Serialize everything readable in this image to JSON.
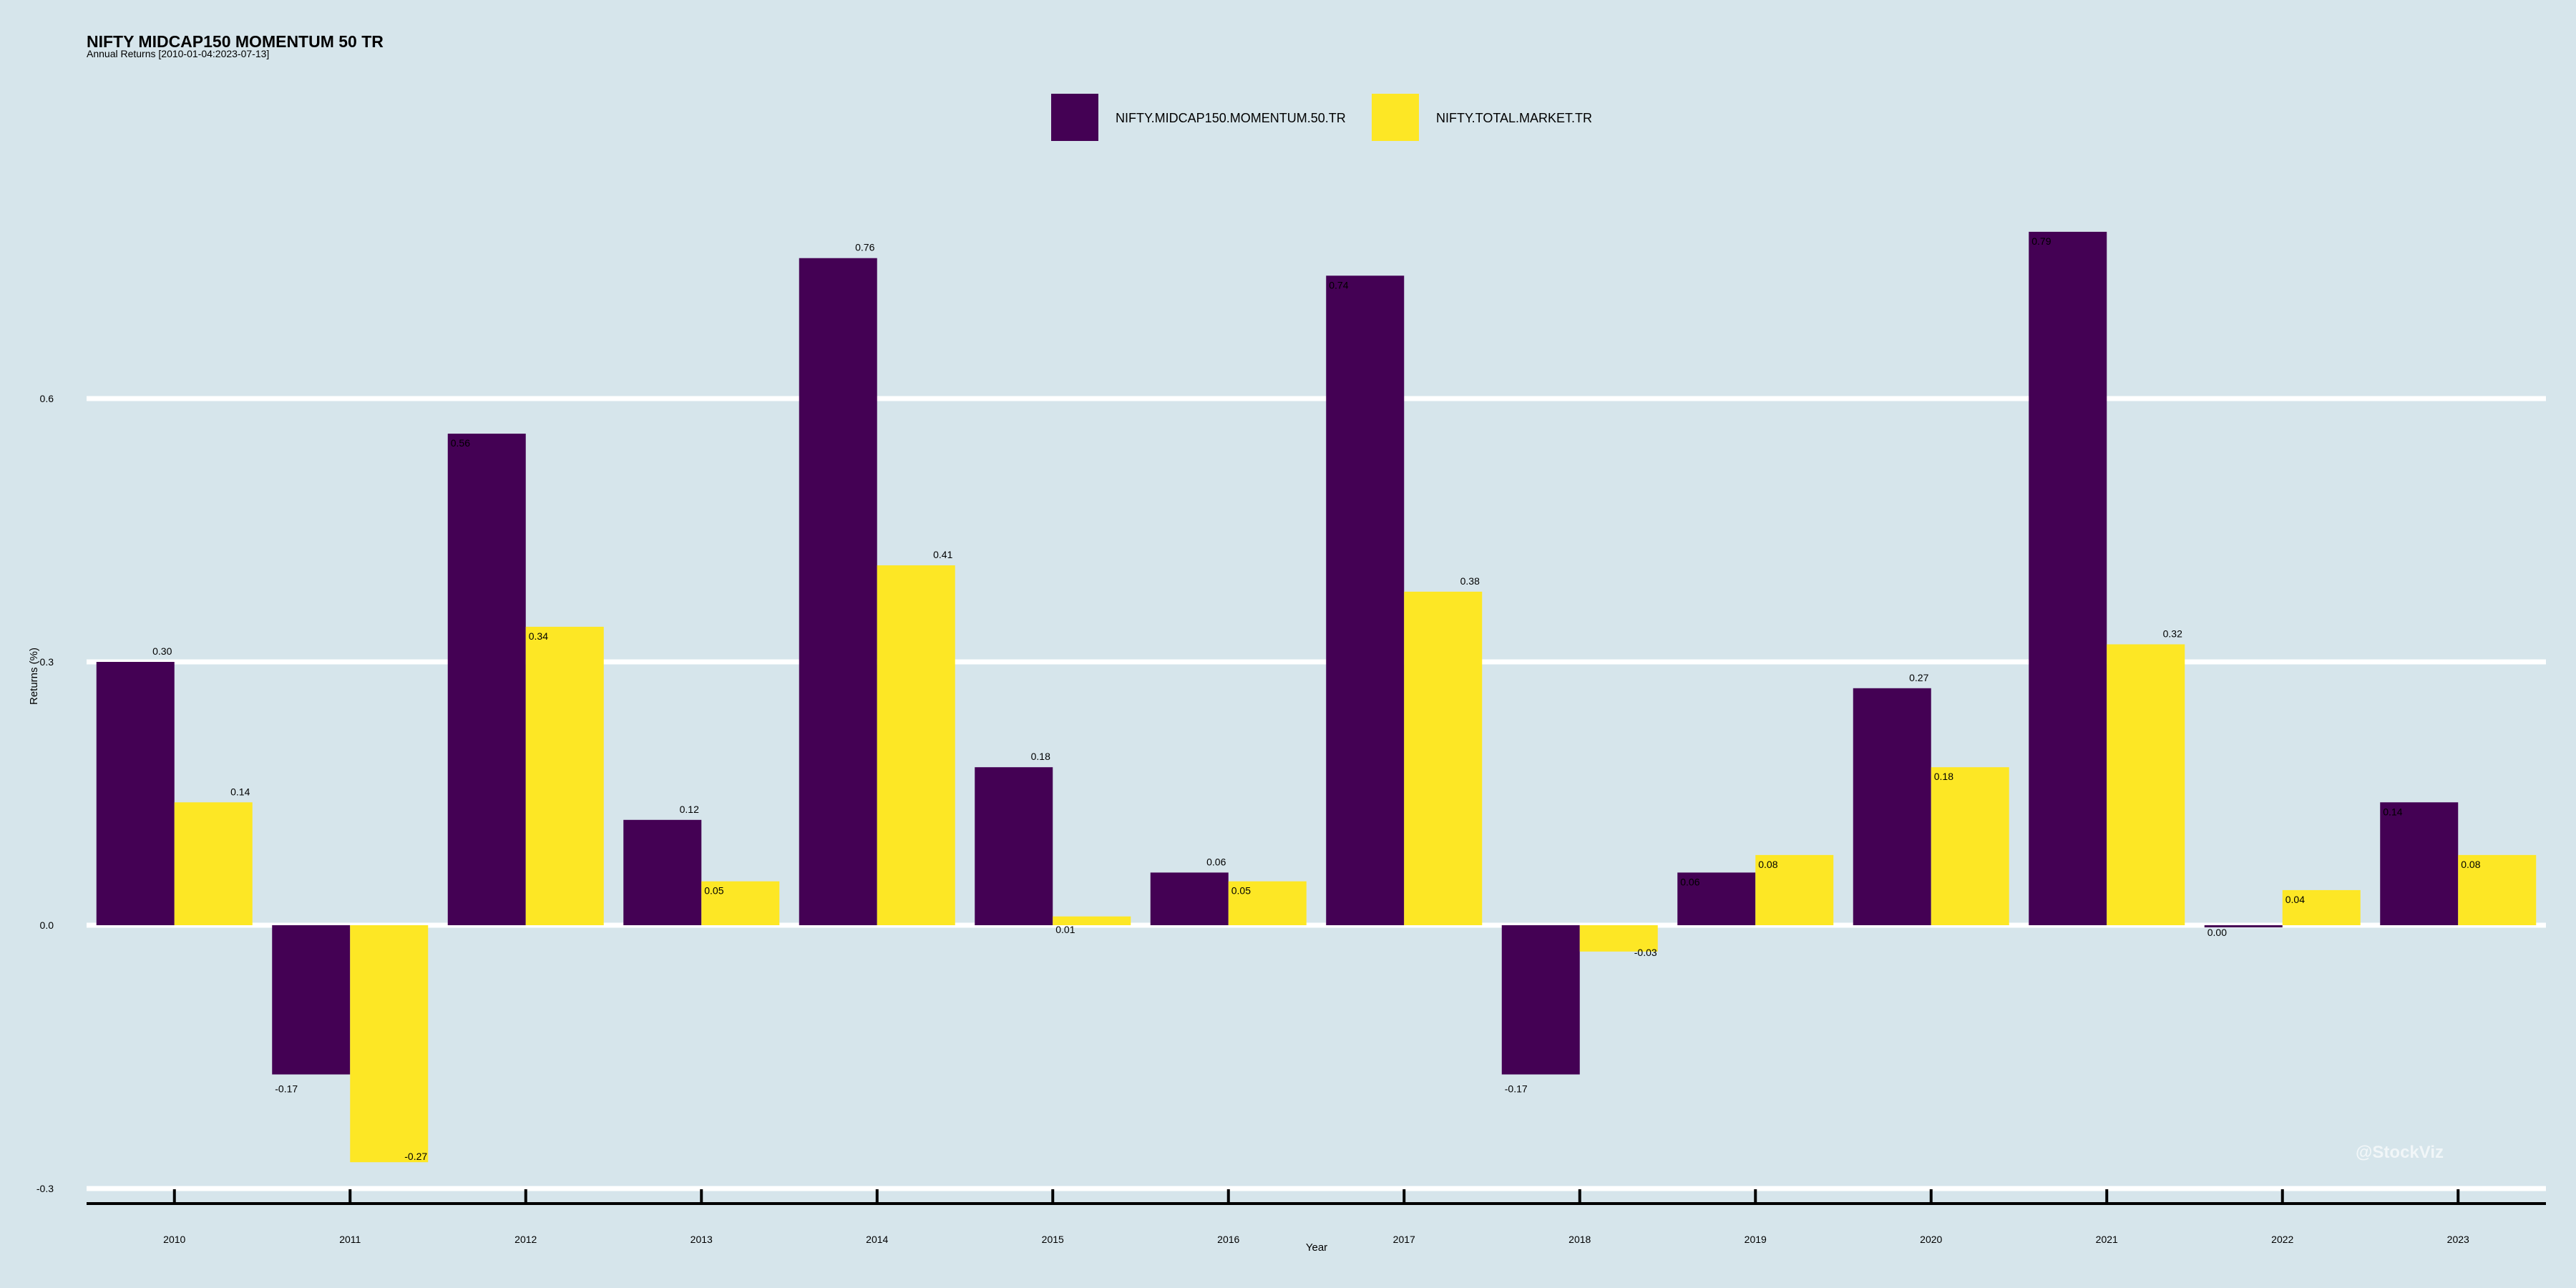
{
  "chart_data": {
    "type": "bar",
    "title": "NIFTY MIDCAP150 MOMENTUM 50 TR",
    "subtitle": "Annual Returns [2010-01-04:2023-07-13]",
    "xlabel": "Year",
    "ylabel": "Returns (%)",
    "ylim": [
      -0.3,
      0.78
    ],
    "yticks": [
      -0.3,
      0.0,
      0.3,
      0.6
    ],
    "ytick_labels": [
      "-0.3",
      "0.0",
      "0.3",
      "0.6"
    ],
    "grid": true,
    "legend_position": "top",
    "categories": [
      "2010",
      "2011",
      "2012",
      "2013",
      "2014",
      "2015",
      "2016",
      "2017",
      "2018",
      "2019",
      "2020",
      "2021",
      "2022",
      "2023"
    ],
    "series": [
      {
        "name": "NIFTY.MIDCAP150.MOMENTUM.50.TR",
        "color": "#440154",
        "values": [
          0.3,
          -0.17,
          0.56,
          0.12,
          0.76,
          0.18,
          0.06,
          0.74,
          -0.17,
          0.06,
          0.27,
          0.79,
          0.0,
          0.14
        ],
        "labels": [
          "0.30",
          "-0.17",
          "0.56",
          "0.12",
          "0.76",
          "0.18",
          "0.06",
          "0.74",
          "-0.17",
          "0.06",
          "0.27",
          "0.79",
          "0.00",
          "0.14"
        ]
      },
      {
        "name": "NIFTY.TOTAL.MARKET.TR",
        "color": "#fde725",
        "values": [
          0.14,
          -0.27,
          0.34,
          0.05,
          0.41,
          0.01,
          0.05,
          0.38,
          -0.03,
          0.08,
          0.18,
          0.32,
          0.04,
          0.08
        ],
        "labels": [
          "0.14",
          "-0.27",
          "0.34",
          "0.05",
          "0.41",
          "0.01",
          "0.05",
          "0.38",
          "-0.03",
          "0.08",
          "0.18",
          "0.32",
          "0.04",
          "0.08"
        ]
      }
    ],
    "watermark": "@StockViz"
  }
}
